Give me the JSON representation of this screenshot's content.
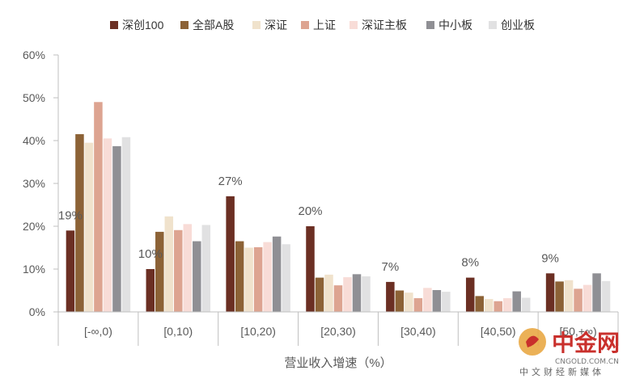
{
  "chart_data": {
    "type": "bar",
    "categories": [
      "[-∞,0)",
      "[0,10)",
      "[10,20)",
      "[20,30)",
      "[30,40)",
      "[40,50)",
      "[50,+∞)"
    ],
    "series": [
      {
        "name": "深创100",
        "color": "#6b2f23",
        "values": [
          19,
          10,
          27,
          20,
          7,
          8,
          9
        ]
      },
      {
        "name": "全部A股",
        "color": "#8c6236",
        "values": [
          41.5,
          18.7,
          16.5,
          8,
          5,
          3.7,
          7.1
        ]
      },
      {
        "name": "深证",
        "color": "#f0e2cc",
        "values": [
          39.5,
          22.3,
          15,
          8.7,
          4.5,
          3,
          7.4
        ]
      },
      {
        "name": "上证",
        "color": "#dda491",
        "values": [
          49,
          19.1,
          15.1,
          6.2,
          3.2,
          2.5,
          5.4
        ]
      },
      {
        "name": "深证主板",
        "color": "#f8dcd7",
        "values": [
          40.5,
          20.5,
          16.3,
          8.1,
          5.6,
          3.2,
          6.3
        ]
      },
      {
        "name": "中小板",
        "color": "#8f8f94",
        "values": [
          38.7,
          16.5,
          17.6,
          8.8,
          5.1,
          4.8,
          9
        ]
      },
      {
        "name": "创业板",
        "color": "#e1e1e2",
        "values": [
          40.8,
          20.3,
          15.8,
          8.3,
          4.7,
          3.3,
          7.2
        ]
      }
    ],
    "data_labels": [
      "19%",
      "10%",
      "27%",
      "20%",
      "7%",
      "8%",
      "9%"
    ],
    "y_ticks": [
      "0%",
      "10%",
      "20%",
      "30%",
      "40%",
      "50%",
      "60%"
    ],
    "ylim": [
      0,
      60
    ],
    "xlabel": "营业收入增速（%）",
    "ylabel": "",
    "legend_position": "top",
    "grid": false
  },
  "watermark": {
    "logo_text": "中金网",
    "domain": "CNGOLD.COM.CN",
    "tagline": "中文财经新媒体"
  }
}
